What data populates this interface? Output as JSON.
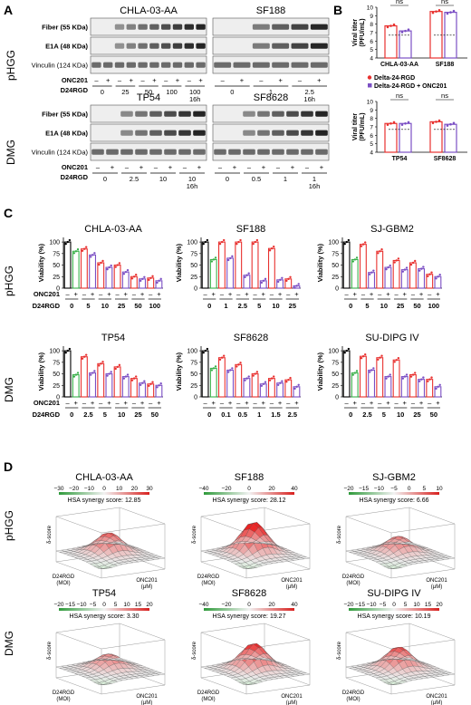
{
  "panel_letters": [
    "A",
    "B",
    "C",
    "D"
  ],
  "group_labels": [
    "pHGG",
    "DMG"
  ],
  "blot": {
    "cell_lines": [
      {
        "name": "CHLA-03-AA",
        "d24rgd_labels": [
          "0",
          "25",
          "50",
          "100",
          "100\n16h"
        ]
      },
      {
        "name": "SF188",
        "d24rgd_labels": [
          "0",
          "1",
          "2.5\n16h"
        ]
      },
      {
        "name": "TP54",
        "d24rgd_labels": [
          "0",
          "2.5",
          "10",
          "10\n16h"
        ]
      },
      {
        "name": "SF8628",
        "d24rgd_labels": [
          "0",
          "0.5",
          "1",
          "1\n16h"
        ]
      }
    ],
    "rows": [
      "Fiber (55 KDa)",
      "E1A (48 KDa)",
      "Vinculin (124 KDa)"
    ],
    "onc201_label": "ONC201",
    "d24rgd_label": "D24RGD",
    "minus": "–",
    "plus": "+"
  },
  "titer_chart": {
    "ylabel": "Viral titer\n(PFU/mL)",
    "ytick_labels": [
      "4",
      "5",
      "6",
      "7",
      "8",
      "9",
      "10"
    ],
    "ns_label": "ns",
    "legend": [
      {
        "label": "Delta-24-RGD",
        "color": "#e8312f"
      },
      {
        "label": "Delta-24-RGD + ONC201",
        "color": "#7b4fc4"
      }
    ]
  },
  "viability_chart": {
    "ylabel": "Viability (%)",
    "ytick_labels": [
      "0",
      "25",
      "50",
      "75",
      "100"
    ],
    "onc201_label": "ONC201",
    "d24rgd_label": "D24RGD"
  },
  "synergy": [
    {
      "name": "CHLA-03-AA",
      "score_label": "HSA synergy score: 12.85",
      "ticks": [
        "−30",
        "−20",
        "−10",
        "0",
        "10",
        "20",
        "30"
      ]
    },
    {
      "name": "SF188",
      "score_label": "HSA synergy score: 28.12",
      "ticks": [
        "−40",
        "−20",
        "0",
        "20",
        "40"
      ]
    },
    {
      "name": "SJ-GBM2",
      "score_label": "HSA synergy score: 6.66",
      "ticks": [
        "−20",
        "−15",
        "−10",
        "−5",
        "0",
        "5",
        "10"
      ]
    },
    {
      "name": "TP54",
      "score_label": "HSA synergy score: 3.30",
      "ticks": [
        "−20",
        "−15",
        "−10",
        "−5",
        "0",
        "5",
        "10",
        "15",
        "20"
      ]
    },
    {
      "name": "SF8628",
      "score_label": "HSA synergy score: 19.27",
      "ticks": [
        "−40",
        "−20",
        "0",
        "20",
        "40"
      ]
    },
    {
      "name": "SU-DIPG IV",
      "score_label": "HSA synergy score: 10.19",
      "ticks": [
        "−20",
        "−15",
        "−10",
        "−5",
        "0",
        "5",
        "10",
        "15",
        "20"
      ]
    }
  ],
  "synergy_axes": {
    "z": "δ-score",
    "x": "D24RGD\n(MOI)",
    "y": "ONC201\n(μM)"
  },
  "chart_data": [
    {
      "type": "bar",
      "title": "CHLA-03-AA",
      "ylabel": "Viral titer (PFU/mL)",
      "categories": [
        "CHLA-03-AA",
        "SF188"
      ],
      "ylim": [
        4,
        10
      ],
      "series": [
        {
          "name": "Delta-24-RGD",
          "values": [
            7.8,
            9.5
          ]
        },
        {
          "name": "Delta-24-RGD + ONC201",
          "values": [
            7.2,
            9.4
          ]
        }
      ]
    },
    {
      "type": "bar",
      "title": "SF8628",
      "ylabel": "Viral titer (PFU/mL)",
      "categories": [
        "TP54",
        "SF8628"
      ],
      "ylim": [
        4,
        10
      ],
      "series": [
        {
          "name": "Delta-24-RGD",
          "values": [
            7.4,
            7.6
          ]
        },
        {
          "name": "Delta-24-RGD + ONC201",
          "values": [
            7.4,
            7.3
          ]
        }
      ]
    },
    {
      "type": "bar",
      "title": "CHLA-03-AA",
      "ylabel": "Viability (%)",
      "ylim": [
        0,
        110
      ],
      "categories": [
        "0",
        "5",
        "10",
        "25",
        "50",
        "100"
      ],
      "series": [
        {
          "name": "ONC201 −",
          "values": [
            100,
            85,
            55,
            50,
            25,
            22
          ]
        },
        {
          "name": "ONC201 +",
          "values": [
            80,
            72,
            45,
            35,
            20,
            16
          ]
        }
      ]
    },
    {
      "type": "bar",
      "title": "SF188",
      "ylabel": "Viability (%)",
      "ylim": [
        0,
        110
      ],
      "categories": [
        "0",
        "1",
        "2.5",
        "5",
        "10",
        "25"
      ],
      "series": [
        {
          "name": "ONC201 −",
          "values": [
            100,
            100,
            100,
            100,
            86,
            20
          ]
        },
        {
          "name": "ONC201 +",
          "values": [
            62,
            65,
            28,
            16,
            18,
            5
          ]
        }
      ]
    },
    {
      "type": "bar",
      "title": "SJ-GBM2",
      "ylabel": "Viability (%)",
      "ylim": [
        0,
        110
      ],
      "categories": [
        "0",
        "5",
        "10",
        "25",
        "50",
        "100"
      ],
      "series": [
        {
          "name": "ONC201 −",
          "values": [
            100,
            95,
            80,
            60,
            55,
            30
          ]
        },
        {
          "name": "ONC201 +",
          "values": [
            62,
            34,
            45,
            40,
            42,
            25
          ]
        }
      ]
    },
    {
      "type": "bar",
      "title": "TP54",
      "ylabel": "Viability (%)",
      "ylim": [
        0,
        110
      ],
      "categories": [
        "0",
        "2.5",
        "5",
        "10",
        "25",
        "50"
      ],
      "series": [
        {
          "name": "ONC201 −",
          "values": [
            100,
            87,
            72,
            65,
            40,
            28
          ]
        },
        {
          "name": "ONC201 +",
          "values": [
            48,
            52,
            50,
            44,
            30,
            25
          ]
        }
      ]
    },
    {
      "type": "bar",
      "title": "SF8628",
      "ylabel": "Viability (%)",
      "ylim": [
        0,
        110
      ],
      "categories": [
        "0",
        "0.1",
        "0.5",
        "1",
        "1.5",
        "2.5"
      ],
      "series": [
        {
          "name": "ONC201 −",
          "values": [
            100,
            85,
            70,
            50,
            40,
            37
          ]
        },
        {
          "name": "ONC201 +",
          "values": [
            62,
            58,
            40,
            28,
            30,
            22
          ]
        }
      ]
    },
    {
      "type": "bar",
      "title": "SU-DIPG IV",
      "ylabel": "Viability (%)",
      "ylim": [
        0,
        110
      ],
      "categories": [
        "0",
        "2.5",
        "5",
        "10",
        "25",
        "50"
      ],
      "series": [
        {
          "name": "ONC201 −",
          "values": [
            100,
            88,
            85,
            80,
            48,
            38
          ]
        },
        {
          "name": "ONC201 +",
          "values": [
            52,
            58,
            44,
            44,
            38,
            22
          ]
        }
      ]
    }
  ]
}
